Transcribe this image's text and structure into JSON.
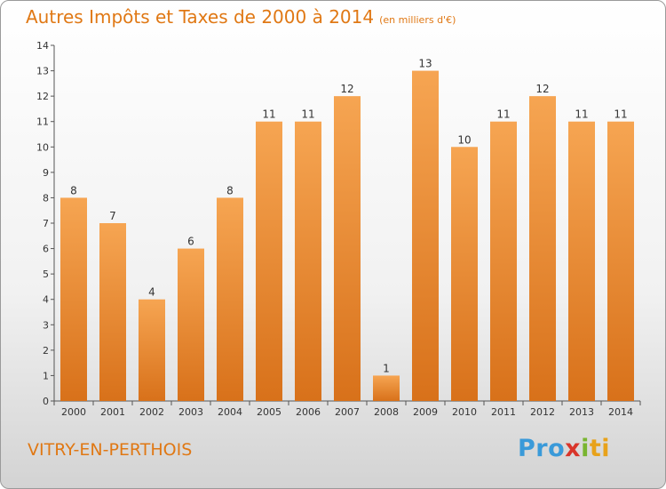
{
  "chart_data": {
    "type": "bar",
    "title": "Autres Impôts et Taxes de 2000 à 2014",
    "subtitle": "(en milliers d'€)",
    "categories": [
      "2000",
      "2001",
      "2002",
      "2003",
      "2004",
      "2005",
      "2006",
      "2007",
      "2008",
      "2009",
      "2010",
      "2011",
      "2012",
      "2013",
      "2014"
    ],
    "values": [
      8,
      7,
      4,
      6,
      8,
      11,
      11,
      12,
      1,
      13,
      10,
      11,
      12,
      11,
      11
    ],
    "yticks": [
      "0",
      "1",
      "2",
      "3",
      "4",
      "5",
      "6",
      "7",
      "8",
      "9",
      "10",
      "11",
      "12",
      "13",
      "14"
    ],
    "ylim": [
      0,
      14
    ],
    "grid": false,
    "legend": "none",
    "bar_color": "#f0913a",
    "label_color": "#333333"
  },
  "footer": {
    "town": "VITRY-EN-PERTHOIS",
    "logo": [
      "Pro",
      "x",
      "i",
      "ti"
    ]
  },
  "colors": {
    "accent": "#e07814",
    "axis": "#555555"
  }
}
